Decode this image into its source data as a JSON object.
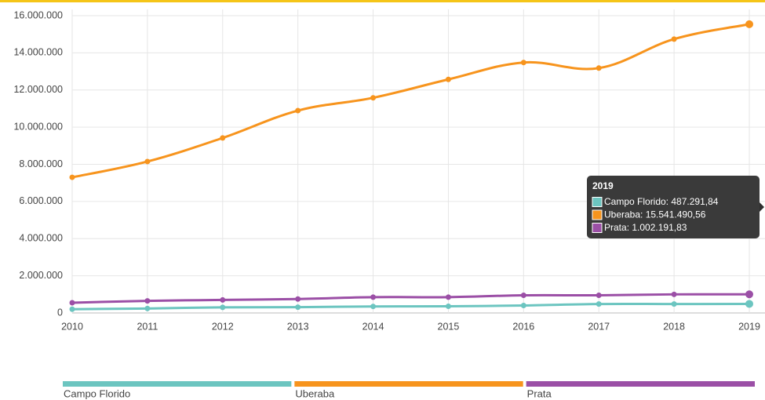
{
  "chart_data": {
    "type": "line",
    "categories": [
      "2010",
      "2011",
      "2012",
      "2013",
      "2014",
      "2015",
      "2016",
      "2017",
      "2018",
      "2019"
    ],
    "series": [
      {
        "name": "Campo Florido",
        "color": "#6cc5c0",
        "values": [
          200000,
          240000,
          300000,
          310000,
          350000,
          360000,
          400000,
          480000,
          480000,
          487291.84
        ],
        "value_labels": [
          null,
          null,
          null,
          null,
          null,
          null,
          null,
          null,
          null,
          "487.291,84"
        ]
      },
      {
        "name": "Uberaba",
        "color": "#f7941d",
        "values": [
          7300000,
          8150000,
          9420000,
          10890000,
          11580000,
          12570000,
          13480000,
          13180000,
          14740000,
          15541490.56
        ],
        "value_labels": [
          null,
          null,
          null,
          null,
          null,
          null,
          null,
          null,
          null,
          "15.541.490,56"
        ]
      },
      {
        "name": "Prata",
        "color": "#9b4fa6",
        "values": [
          550000,
          650000,
          700000,
          750000,
          850000,
          850000,
          950000,
          950000,
          1000000,
          1002191.83
        ],
        "value_labels": [
          null,
          null,
          null,
          null,
          null,
          null,
          null,
          null,
          null,
          "1.002.191,83"
        ]
      }
    ],
    "ylim": [
      0,
      16000000
    ],
    "yticks": [
      0,
      {
        "value": 2000000,
        "label": "2.000.000"
      },
      {
        "value": 4000000,
        "label": "4.000.000"
      },
      {
        "value": 6000000,
        "label": "6.000.000"
      },
      {
        "value": 8000000,
        "label": "8.000.000"
      },
      {
        "value": 10000000,
        "label": "10.000.000"
      },
      {
        "value": 12000000,
        "label": "12.000.000"
      },
      {
        "value": 14000000,
        "label": "14.000.000"
      },
      {
        "value": 16000000,
        "label": "16.000.000"
      }
    ],
    "grid": true,
    "legend": "bottom",
    "tooltip": {
      "index": 9,
      "separator": ": "
    }
  }
}
